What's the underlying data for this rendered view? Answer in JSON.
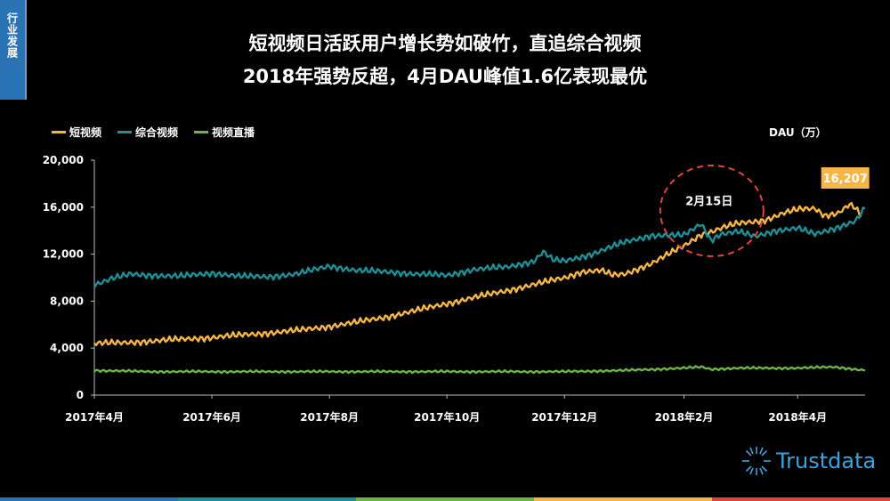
{
  "section_tab": "行业发展",
  "title_line1": "短视频日活跃用户增长势如破竹，直追综合视频",
  "title_line2": "2018年强势反超，4月DAU峰值1.6亿表现最优",
  "unit_label": "DAU（万）",
  "brand": "Trustdata",
  "colors": {
    "short_video": "#f5b547",
    "general_video": "#1f8e96",
    "live_video": "#6cb445",
    "annotation_circle": "#e0453a",
    "peak_badge": "#f5b547",
    "footer": [
      "#2a74b5",
      "#1f8e96",
      "#6cb445",
      "#f5b547",
      "#e0453a"
    ]
  },
  "chart_data": {
    "type": "line",
    "title": "",
    "xlabel": "",
    "ylabel": "DAU（万）",
    "ylim": [
      0,
      20000
    ],
    "yticks": [
      0,
      4000,
      8000,
      12000,
      16000,
      20000
    ],
    "ytick_labels": [
      "0",
      "4,000",
      "8,000",
      "12,000",
      "16,000",
      "20,000"
    ],
    "grid": false,
    "legend_position": "top-left",
    "x_range": [
      "2017-04-01",
      "2018-05-06"
    ],
    "xtick_labels": [
      {
        "date": "2017-04-01",
        "label": "2017年4月"
      },
      {
        "date": "2017-06-01",
        "label": "2017年6月"
      },
      {
        "date": "2017-08-01",
        "label": "2017年8月"
      },
      {
        "date": "2017-10-01",
        "label": "2017年10月"
      },
      {
        "date": "2017-12-01",
        "label": "2017年12月"
      },
      {
        "date": "2018-02-01",
        "label": "2018年2月"
      },
      {
        "date": "2018-04-01",
        "label": "2018年4月"
      }
    ],
    "series": [
      {
        "name": "短视频",
        "color_key": "short_video",
        "points": [
          [
            "2017-04-01",
            4400
          ],
          [
            "2017-04-15",
            4450
          ],
          [
            "2017-05-01",
            4600
          ],
          [
            "2017-05-15",
            4750
          ],
          [
            "2017-06-01",
            4900
          ],
          [
            "2017-06-15",
            5100
          ],
          [
            "2017-07-01",
            5300
          ],
          [
            "2017-07-15",
            5500
          ],
          [
            "2017-08-01",
            5850
          ],
          [
            "2017-08-15",
            6200
          ],
          [
            "2017-09-01",
            6700
          ],
          [
            "2017-09-15",
            7200
          ],
          [
            "2017-10-01",
            7800
          ],
          [
            "2017-10-15",
            8300
          ],
          [
            "2017-11-01",
            8900
          ],
          [
            "2017-11-15",
            9400
          ],
          [
            "2017-12-01",
            10000
          ],
          [
            "2017-12-10",
            10500
          ],
          [
            "2017-12-20",
            10600
          ],
          [
            "2017-12-26",
            10200
          ],
          [
            "2018-01-01",
            10300
          ],
          [
            "2018-01-15",
            11200
          ],
          [
            "2018-02-01",
            12700
          ],
          [
            "2018-02-10",
            13700
          ],
          [
            "2018-02-15",
            13900
          ],
          [
            "2018-02-22",
            14300
          ],
          [
            "2018-03-01",
            14600
          ],
          [
            "2018-03-15",
            14900
          ],
          [
            "2018-03-25",
            15500
          ],
          [
            "2018-04-01",
            15800
          ],
          [
            "2018-04-10",
            15900
          ],
          [
            "2018-04-15",
            15300
          ],
          [
            "2018-04-22",
            15500
          ],
          [
            "2018-04-28",
            16207
          ],
          [
            "2018-05-01",
            15900
          ],
          [
            "2018-05-04",
            15200
          ]
        ]
      },
      {
        "name": "综合视频",
        "color_key": "general_video",
        "points": [
          [
            "2017-04-01",
            9400
          ],
          [
            "2017-04-10",
            9900
          ],
          [
            "2017-04-20",
            10300
          ],
          [
            "2017-05-01",
            10200
          ],
          [
            "2017-05-15",
            10100
          ],
          [
            "2017-06-01",
            10400
          ],
          [
            "2017-06-15",
            10100
          ],
          [
            "2017-07-01",
            10100
          ],
          [
            "2017-07-15",
            10300
          ],
          [
            "2017-08-01",
            11000
          ],
          [
            "2017-08-15",
            10600
          ],
          [
            "2017-09-01",
            10500
          ],
          [
            "2017-09-15",
            10300
          ],
          [
            "2017-10-01",
            10200
          ],
          [
            "2017-10-15",
            10700
          ],
          [
            "2017-11-01",
            10900
          ],
          [
            "2017-11-15",
            11400
          ],
          [
            "2017-11-20",
            12200
          ],
          [
            "2017-11-25",
            11500
          ],
          [
            "2017-12-01",
            11400
          ],
          [
            "2017-12-15",
            12000
          ],
          [
            "2018-01-01",
            13000
          ],
          [
            "2018-01-15",
            13600
          ],
          [
            "2018-02-01",
            13600
          ],
          [
            "2018-02-10",
            14600
          ],
          [
            "2018-02-15",
            13200
          ],
          [
            "2018-02-20",
            13700
          ],
          [
            "2018-03-01",
            13900
          ],
          [
            "2018-03-10",
            13500
          ],
          [
            "2018-03-20",
            14000
          ],
          [
            "2018-04-01",
            14200
          ],
          [
            "2018-04-10",
            13700
          ],
          [
            "2018-04-20",
            14200
          ],
          [
            "2018-05-01",
            14800
          ],
          [
            "2018-05-06",
            15900
          ]
        ]
      },
      {
        "name": "视频直播",
        "color_key": "live_video",
        "points": [
          [
            "2017-04-01",
            2100
          ],
          [
            "2017-05-01",
            2000
          ],
          [
            "2017-06-01",
            2000
          ],
          [
            "2017-07-01",
            2000
          ],
          [
            "2017-08-01",
            2000
          ],
          [
            "2017-09-01",
            2000
          ],
          [
            "2017-10-01",
            2000
          ],
          [
            "2017-11-01",
            2000
          ],
          [
            "2017-12-01",
            2000
          ],
          [
            "2018-01-01",
            2100
          ],
          [
            "2018-02-01",
            2300
          ],
          [
            "2018-02-10",
            2400
          ],
          [
            "2018-02-15",
            2200
          ],
          [
            "2018-03-01",
            2300
          ],
          [
            "2018-04-01",
            2300
          ],
          [
            "2018-04-20",
            2400
          ],
          [
            "2018-05-06",
            2100
          ]
        ]
      }
    ],
    "annotations": [
      {
        "label": "2月15日",
        "date": "2018-02-15",
        "value": 15100
      },
      {
        "label": "16,207",
        "date": "2018-04-28",
        "value": 16207,
        "type": "peak"
      }
    ]
  }
}
